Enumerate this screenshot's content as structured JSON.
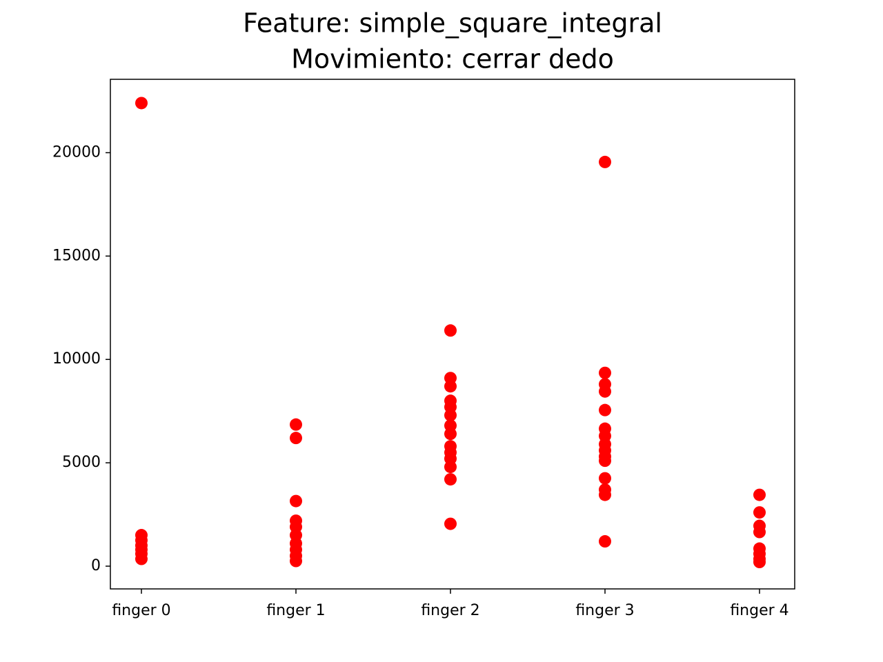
{
  "chart_data": {
    "type": "scatter",
    "title": [
      "Feature: simple_square_integral",
      "Movimiento: cerrar dedo"
    ],
    "categories": [
      "finger 0",
      "finger 1",
      "finger 2",
      "finger 3",
      "finger 4"
    ],
    "values": [
      [
        22400,
        1500,
        1250,
        1000,
        800,
        600,
        350
      ],
      [
        6850,
        6200,
        3150,
        2200,
        1900,
        1500,
        1100,
        800,
        500,
        250
      ],
      [
        11400,
        9100,
        8700,
        8000,
        7700,
        7300,
        6800,
        6400,
        5800,
        5500,
        5200,
        4800,
        4200,
        2050
      ],
      [
        19550,
        9350,
        8800,
        8450,
        7550,
        6650,
        6300,
        5900,
        5600,
        5300,
        5100,
        4250,
        3700,
        3450,
        1200
      ],
      [
        3450,
        2600,
        1950,
        1650,
        850,
        600,
        350,
        200
      ]
    ],
    "color": "#ff0000",
    "ylim": [
      -1100,
      23550
    ],
    "yticks": [
      0,
      5000,
      10000,
      15000,
      20000
    ],
    "grid": false
  }
}
